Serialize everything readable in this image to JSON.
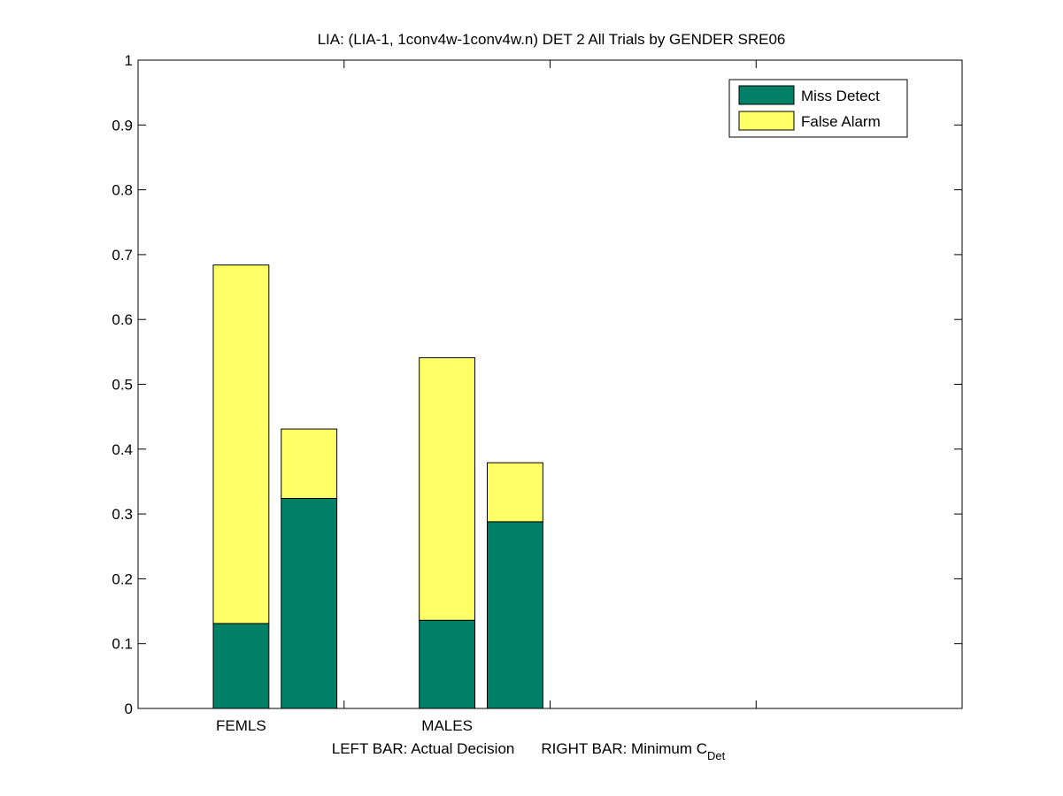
{
  "chart_data": {
    "type": "bar",
    "stacked": true,
    "title": "LIA: (LIA-1, 1conv4w-1conv4w.n) DET 2 All Trials by GENDER SRE06",
    "xlabel_parts": {
      "left": "LEFT BAR: Actual Decision",
      "right_main": "RIGHT BAR: Minimum C",
      "right_sub": "Det"
    },
    "ylabel": "",
    "ylim": [
      0,
      1
    ],
    "yticks": [
      "0",
      "0.1",
      "0.2",
      "0.3",
      "0.4",
      "0.5",
      "0.6",
      "0.7",
      "0.8",
      "0.9",
      "1"
    ],
    "categories": [
      "FEMLS",
      "MALES"
    ],
    "bars_per_category": [
      "Actual Decision",
      "Minimum CDet"
    ],
    "series": [
      {
        "name": "Miss Detect",
        "color": "#008066",
        "values": [
          [
            0.131,
            0.324
          ],
          [
            0.136,
            0.288
          ]
        ]
      },
      {
        "name": "False Alarm",
        "color": "#FFFF66",
        "values": [
          [
            0.553,
            0.107
          ],
          [
            0.405,
            0.091
          ]
        ]
      }
    ],
    "legend_position": "top-right",
    "grid": false
  }
}
